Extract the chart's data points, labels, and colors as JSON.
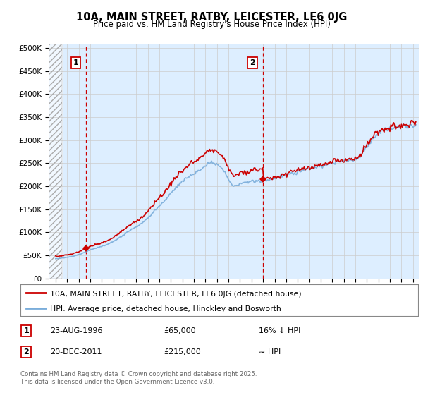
{
  "title": "10A, MAIN STREET, RATBY, LEICESTER, LE6 0JG",
  "subtitle": "Price paid vs. HM Land Registry's House Price Index (HPI)",
  "legend_line1": "10A, MAIN STREET, RATBY, LEICESTER, LE6 0JG (detached house)",
  "legend_line2": "HPI: Average price, detached house, Hinckley and Bosworth",
  "footnote": "Contains HM Land Registry data © Crown copyright and database right 2025.\nThis data is licensed under the Open Government Licence v3.0.",
  "point1_label": "1",
  "point1_date": "23-AUG-1996",
  "point1_price": "£65,000",
  "point1_hpi": "16% ↓ HPI",
  "point2_label": "2",
  "point2_date": "20-DEC-2011",
  "point2_price": "£215,000",
  "point2_hpi": "≈ HPI",
  "sale_color": "#cc0000",
  "hpi_color": "#7aadda",
  "grid_color": "#cccccc",
  "bg_color": "#ddeeff",
  "ytick_labels": [
    "£0",
    "£50K",
    "£100K",
    "£150K",
    "£200K",
    "£250K",
    "£300K",
    "£350K",
    "£400K",
    "£450K",
    "£500K"
  ],
  "yticks": [
    0,
    50000,
    100000,
    150000,
    200000,
    250000,
    300000,
    350000,
    400000,
    450000,
    500000
  ],
  "sale1_year": 1996.64,
  "sale1_price": 65000,
  "sale2_year": 2011.97,
  "sale2_price": 215000
}
